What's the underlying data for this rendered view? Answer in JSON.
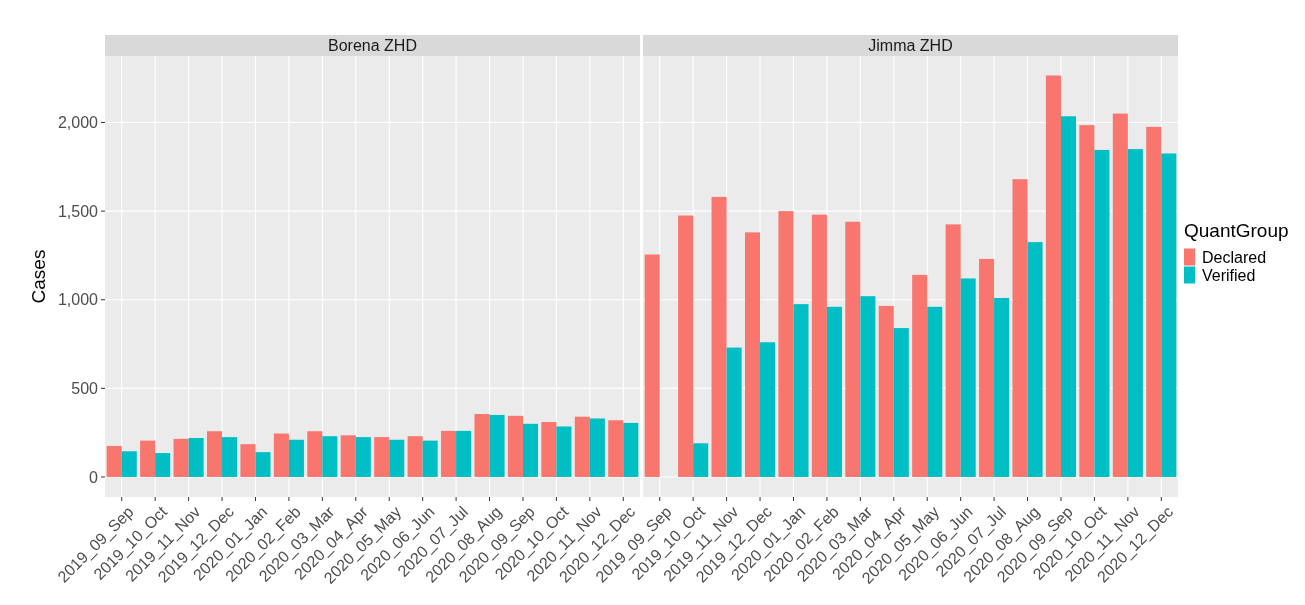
{
  "chart_data": [
    {
      "type": "bar",
      "title": "Borena ZHD",
      "ylabel": "Cases",
      "categories": [
        "2019_09_Sep",
        "2019_10_Oct",
        "2019_11_Nov",
        "2019_12_Dec",
        "2020_01_Jan",
        "2020_02_Feb",
        "2020_03_Mar",
        "2020_04_Apr",
        "2020_05_May",
        "2020_06_Jun",
        "2020_07_Jul",
        "2020_08_Aug",
        "2020_09_Sep",
        "2020_10_Oct",
        "2020_11_Nov",
        "2020_12_Dec"
      ],
      "series": [
        {
          "color": "#f8766d",
          "values": [
            175,
            205,
            215,
            258,
            185,
            245,
            258,
            235,
            225,
            230,
            260,
            355,
            345,
            310,
            340,
            320
          ]
        },
        {
          "color": "#00bfc4",
          "values": [
            145,
            135,
            220,
            225,
            140,
            210,
            230,
            225,
            210,
            205,
            260,
            350,
            300,
            285,
            330,
            305
          ]
        }
      ],
      "ylim": [
        -113,
        2375
      ],
      "yticks": [
        0,
        {
          "value": 500,
          "label": "500"
        },
        {
          "value": 1000,
          "label": "1,000"
        },
        {
          "value": 1500,
          "label": "1,500"
        },
        {
          "value": 2000,
          "label": "2,000"
        }
      ],
      "grid": true,
      "legend": false
    },
    {
      "type": "bar",
      "title": "Jimma ZHD",
      "legend_title": "QuantGroup",
      "categories": [
        "2019_09_Sep",
        "2019_10_Oct",
        "2019_11_Nov",
        "2019_12_Dec",
        "2020_01_Jan",
        "2020_02_Feb",
        "2020_03_Mar",
        "2020_04_Apr",
        "2020_05_May",
        "2020_06_Jun",
        "2020_07_Jul",
        "2020_08_Aug",
        "2020_09_Sep",
        "2020_10_Oct",
        "2020_11_Nov",
        "2020_12_Dec"
      ],
      "series": [
        {
          "name": "Declared",
          "color": "#f8766d",
          "values": [
            1255,
            1475,
            1580,
            1380,
            1500,
            1480,
            1440,
            965,
            1140,
            1425,
            1230,
            1680,
            2265,
            1985,
            2050,
            1975
          ]
        },
        {
          "name": "Verified",
          "color": "#00bfc4",
          "values": [
            0,
            190,
            730,
            760,
            975,
            960,
            1020,
            840,
            960,
            1120,
            1010,
            1325,
            2035,
            1845,
            1850,
            1825
          ]
        }
      ],
      "ylim": [
        -113,
        2375
      ],
      "yticks": [
        0,
        500,
        1000,
        1500,
        2000
      ],
      "grid": true,
      "legend": "right",
      "tick_labels": "x"
    }
  ]
}
